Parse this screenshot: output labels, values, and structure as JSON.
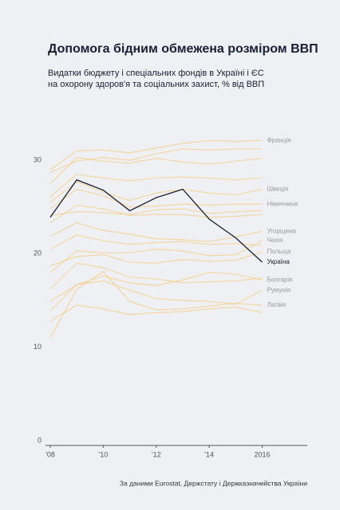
{
  "chart_data": {
    "type": "line",
    "title": "Допомога бідним обмежена розміром ВВП",
    "subtitle": [
      "Видатки бюджету і спеціальних фондів в Україні і ЄС",
      "на охорону здоров'я та соціальних захист, % від ВВП"
    ],
    "source": "За даними Eurostat, Держстату і Держказначейства України",
    "x": [
      2008,
      2009,
      2010,
      2011,
      2012,
      2013,
      2014,
      2015,
      2016
    ],
    "xlim": [
      2008,
      2017.7
    ],
    "xticks": [
      {
        "value": 2008,
        "label": "'08"
      },
      {
        "value": 2010,
        "label": "'10"
      },
      {
        "value": 2012,
        "label": "'12"
      },
      {
        "value": 2014,
        "label": "'14"
      },
      2016
    ],
    "ylim": [
      0,
      34
    ],
    "yticks": [
      0,
      10,
      20,
      30
    ],
    "grid": false,
    "series": [
      {
        "color": "#f6cf8e",
        "values": [
          29.2,
          30.4,
          30.8,
          30.5,
          31.2,
          31.7,
          31.6,
          31.7,
          31.7
        ]
      },
      {
        "color": "#f6cf8e",
        "values": [
          28.0,
          30.8,
          30.4,
          30.2,
          30.7,
          30.3,
          30.1,
          30.4,
          30.7
        ]
      },
      {
        "color": "#f6cf8e",
        "values": [
          26.6,
          29.0,
          28.6,
          28.3,
          28.6,
          28.7,
          28.6,
          28.4,
          28.6
        ]
      },
      {
        "color": "#f6cf8e",
        "values": [
          24.6,
          25.0,
          24.9,
          24.7,
          25.2,
          25.3,
          24.8,
          25.0,
          25.1
        ]
      },
      {
        "color": "#f6cf8e",
        "values": [
          23.8,
          25.7,
          25.3,
          24.6,
          24.7,
          24.7,
          24.4,
          24.5,
          24.7
        ]
      },
      {
        "color": "#f6cf8e",
        "values": [
          21.0,
          22.5,
          21.9,
          21.5,
          21.7,
          21.8,
          21.5,
          21.6,
          21.4
        ]
      },
      {
        "color": "#f6cf8e",
        "values": [
          16.7,
          19.5,
          19.0,
          18.0,
          17.8,
          17.4,
          17.5,
          17.6,
          17.9
        ]
      },
      {
        "color": "#f6cf8e",
        "values": [
          13.3,
          15.0,
          14.6,
          14.0,
          14.2,
          14.3,
          14.6,
          14.8,
          14.2
        ]
      },
      {
        "name": "Франція",
        "color": "#f6cf8e",
        "values": [
          29.5,
          31.5,
          31.6,
          31.3,
          31.8,
          32.3,
          32.6,
          32.5,
          32.6
        ]
      },
      {
        "name": "Швеція",
        "color": "#f6cf8e",
        "values": [
          26.0,
          28.2,
          27.1,
          26.2,
          27.0,
          27.4,
          27.0,
          26.8,
          27.4
        ]
      },
      {
        "name": "Німеччина",
        "color": "#f6cf8e",
        "values": [
          25.3,
          27.4,
          26.7,
          25.5,
          25.6,
          25.8,
          25.7,
          25.8,
          25.8
        ]
      },
      {
        "name": "Угорщина",
        "color": "#f6cf8e",
        "values": [
          22.4,
          23.8,
          23.0,
          22.6,
          22.1,
          22.0,
          21.8,
          22.3,
          22.9
        ]
      },
      {
        "name": "Чехія",
        "color": "#f6cf8e",
        "values": [
          18.5,
          20.8,
          20.6,
          20.6,
          21.0,
          20.8,
          20.3,
          20.4,
          21.9
        ]
      },
      {
        "name": "Польща",
        "color": "#f6cf8e",
        "values": [
          19.2,
          20.2,
          20.4,
          19.6,
          19.5,
          19.9,
          19.7,
          19.8,
          20.7
        ]
      },
      {
        "name": "Болгарія",
        "color": "#f6cf8e",
        "values": [
          15.4,
          17.2,
          18.1,
          17.4,
          17.1,
          17.7,
          18.5,
          18.3,
          17.7
        ]
      },
      {
        "name": "Румунія",
        "color": "#f6cf8e",
        "values": [
          14.4,
          17.2,
          17.6,
          16.6,
          15.7,
          15.5,
          15.4,
          15.1,
          16.6
        ]
      },
      {
        "name": "Латвія",
        "color": "#f6cf8e",
        "values": [
          11.5,
          16.7,
          18.6,
          15.4,
          14.5,
          14.6,
          14.9,
          15.2,
          15.0
        ]
      },
      {
        "name": "Україна",
        "color": "#1a1f33",
        "values": [
          24.4,
          28.4,
          27.3,
          25.1,
          26.5,
          27.4,
          24.2,
          22.2,
          19.6
        ]
      }
    ]
  }
}
